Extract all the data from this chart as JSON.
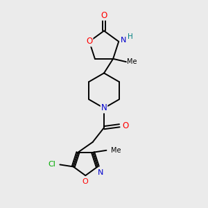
{
  "bg_color": "#ebebeb",
  "bond_color": "#000000",
  "atom_colors": {
    "O": "#ff0000",
    "N": "#0000cc",
    "Cl": "#00aa00",
    "C": "#000000",
    "H": "#008080"
  }
}
